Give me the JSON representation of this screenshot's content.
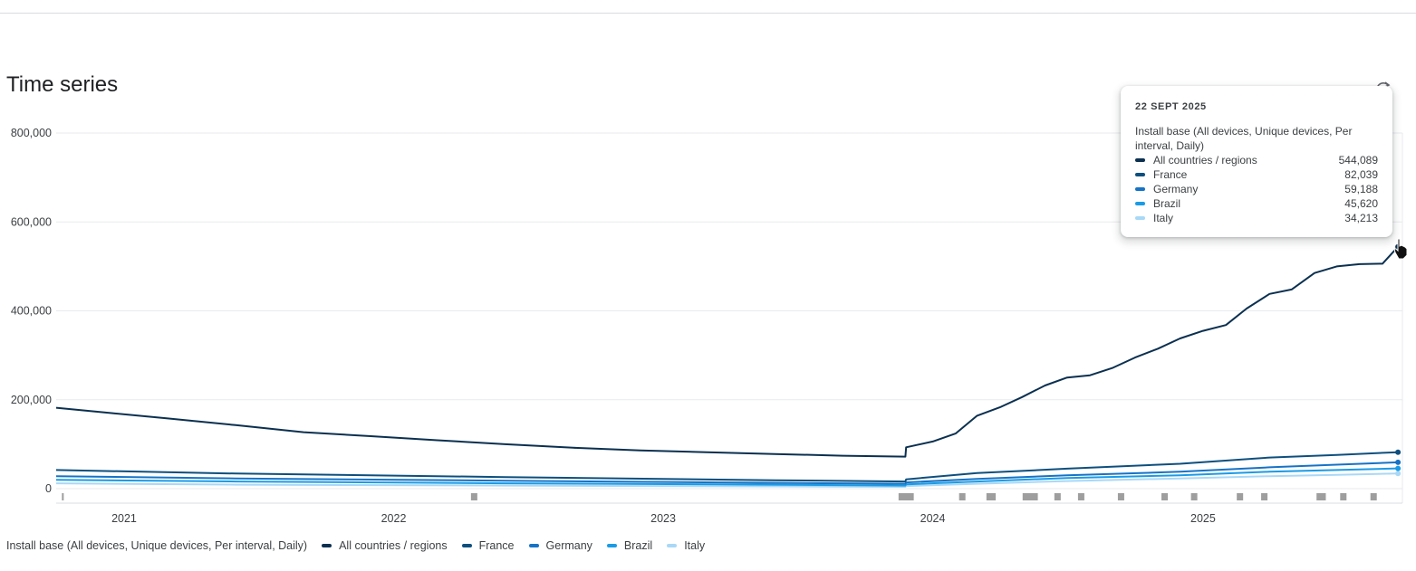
{
  "page": {
    "title": "Time series"
  },
  "chart_data": {
    "type": "line",
    "title": "Time series",
    "ylabel": "",
    "xlabel": "",
    "ylim": [
      0,
      800000
    ],
    "yticks": [
      0,
      200000,
      400000,
      600000,
      800000
    ],
    "ytick_labels": [
      "0",
      "200,000",
      "400,000",
      "600,000",
      "800,000"
    ],
    "xlim": [
      "2020-10-01",
      "2025-09-28"
    ],
    "xticks": [
      "2021-01-01",
      "2022-01-01",
      "2023-01-01",
      "2024-01-01",
      "2025-01-01"
    ],
    "xtick_labels": [
      "2021",
      "2022",
      "2023",
      "2024",
      "2025"
    ],
    "grid": true,
    "legend_position": "bottom-left",
    "metric_label": "Install base (All devices, Unique devices, Per interval, Daily)",
    "series": [
      {
        "name": "All countries / regions",
        "color": "#0b3050",
        "points": [
          [
            "2020-10-01",
            182000
          ],
          [
            "2020-12-15",
            170000
          ],
          [
            "2021-03-01",
            158000
          ],
          [
            "2021-06-01",
            143000
          ],
          [
            "2021-09-01",
            127000
          ],
          [
            "2021-12-01",
            118000
          ],
          [
            "2022-03-01",
            109000
          ],
          [
            "2022-06-01",
            100000
          ],
          [
            "2022-09-01",
            92000
          ],
          [
            "2022-12-01",
            86000
          ],
          [
            "2023-03-01",
            82000
          ],
          [
            "2023-06-01",
            78000
          ],
          [
            "2023-09-01",
            74000
          ],
          [
            "2023-11-25",
            72000
          ],
          [
            "2023-11-26",
            93000
          ],
          [
            "2024-01-01",
            106000
          ],
          [
            "2024-02-01",
            124000
          ],
          [
            "2024-03-01",
            164000
          ],
          [
            "2024-04-01",
            183000
          ],
          [
            "2024-05-01",
            206000
          ],
          [
            "2024-06-01",
            232000
          ],
          [
            "2024-07-01",
            250000
          ],
          [
            "2024-08-01",
            255000
          ],
          [
            "2024-09-01",
            272000
          ],
          [
            "2024-10-01",
            295000
          ],
          [
            "2024-11-01",
            315000
          ],
          [
            "2024-12-01",
            338000
          ],
          [
            "2025-01-01",
            355000
          ],
          [
            "2025-02-01",
            368000
          ],
          [
            "2025-03-01",
            405000
          ],
          [
            "2025-04-01",
            438000
          ],
          [
            "2025-05-01",
            448000
          ],
          [
            "2025-06-01",
            485000
          ],
          [
            "2025-07-01",
            500000
          ],
          [
            "2025-08-01",
            505000
          ],
          [
            "2025-09-01",
            506000
          ],
          [
            "2025-09-22",
            544089
          ]
        ]
      },
      {
        "name": "France",
        "color": "#0d4f7e",
        "points": [
          [
            "2020-10-01",
            42000
          ],
          [
            "2021-06-01",
            34000
          ],
          [
            "2022-06-01",
            26000
          ],
          [
            "2023-06-01",
            19000
          ],
          [
            "2023-11-25",
            16000
          ],
          [
            "2023-11-26",
            21000
          ],
          [
            "2024-03-01",
            35000
          ],
          [
            "2024-07-01",
            45000
          ],
          [
            "2024-12-01",
            56000
          ],
          [
            "2025-04-01",
            70000
          ],
          [
            "2025-07-01",
            76000
          ],
          [
            "2025-09-22",
            82039
          ]
        ]
      },
      {
        "name": "Germany",
        "color": "#1673c6",
        "points": [
          [
            "2020-10-01",
            28000
          ],
          [
            "2021-06-01",
            23000
          ],
          [
            "2022-06-01",
            18000
          ],
          [
            "2023-06-01",
            13000
          ],
          [
            "2023-11-25",
            11000
          ],
          [
            "2023-11-26",
            14000
          ],
          [
            "2024-03-01",
            22000
          ],
          [
            "2024-07-01",
            30000
          ],
          [
            "2024-12-01",
            38000
          ],
          [
            "2025-04-01",
            48000
          ],
          [
            "2025-07-01",
            54000
          ],
          [
            "2025-09-22",
            59188
          ]
        ]
      },
      {
        "name": "Brazil",
        "color": "#1a9be6",
        "points": [
          [
            "2020-10-01",
            20000
          ],
          [
            "2021-06-01",
            16000
          ],
          [
            "2022-06-01",
            12000
          ],
          [
            "2023-06-01",
            9000
          ],
          [
            "2023-11-25",
            7000
          ],
          [
            "2023-11-26",
            9500
          ],
          [
            "2024-03-01",
            16000
          ],
          [
            "2024-07-01",
            24000
          ],
          [
            "2024-12-01",
            30000
          ],
          [
            "2025-04-01",
            38000
          ],
          [
            "2025-07-01",
            42000
          ],
          [
            "2025-09-22",
            45620
          ]
        ]
      },
      {
        "name": "Italy",
        "color": "#a9d8f7",
        "points": [
          [
            "2020-10-01",
            12000
          ],
          [
            "2021-06-01",
            9000
          ],
          [
            "2022-06-01",
            7000
          ],
          [
            "2023-06-01",
            5000
          ],
          [
            "2023-11-25",
            4000
          ],
          [
            "2023-11-26",
            6000
          ],
          [
            "2024-03-01",
            11000
          ],
          [
            "2024-07-01",
            17000
          ],
          [
            "2024-12-01",
            23000
          ],
          [
            "2025-04-01",
            28000
          ],
          [
            "2025-07-01",
            31000
          ],
          [
            "2025-09-22",
            34213
          ]
        ]
      }
    ],
    "annotations": [
      "2020-10-10",
      "2022-04-20",
      "2023-11-20",
      "2023-11-24",
      "2023-11-28",
      "2023-12-02",
      "2024-02-10",
      "2024-03-18",
      "2024-03-22",
      "2024-05-06",
      "2024-05-12",
      "2024-05-18",
      "2024-06-18",
      "2024-07-20",
      "2024-09-12",
      "2024-11-10",
      "2024-12-20",
      "2025-02-20",
      "2025-03-25",
      "2025-06-08",
      "2025-06-12",
      "2025-07-10",
      "2025-08-20"
    ]
  },
  "tooltip": {
    "date": "22 SEPT 2025",
    "metric": "Install base (All devices, Unique devices, Per interval, Daily)",
    "rows": [
      {
        "name": "All countries / regions",
        "value": "544,089",
        "color": "#0b3050"
      },
      {
        "name": "France",
        "value": "82,039",
        "color": "#0d4f7e"
      },
      {
        "name": "Germany",
        "value": "59,188",
        "color": "#1673c6"
      },
      {
        "name": "Brazil",
        "value": "45,620",
        "color": "#1a9be6"
      },
      {
        "name": "Italy",
        "value": "34,213",
        "color": "#a9d8f7"
      }
    ]
  },
  "legend": {
    "metric": "Install base (All devices, Unique devices, Per interval, Daily)",
    "items": [
      {
        "name": "All countries / regions",
        "color": "#0b3050"
      },
      {
        "name": "France",
        "color": "#0d4f7e"
      },
      {
        "name": "Germany",
        "color": "#1673c6"
      },
      {
        "name": "Brazil",
        "color": "#1a9be6"
      },
      {
        "name": "Italy",
        "color": "#a9d8f7"
      }
    ]
  },
  "icons": {
    "cursor": "hand-pointer-icon",
    "refresh": "refresh-icon"
  }
}
